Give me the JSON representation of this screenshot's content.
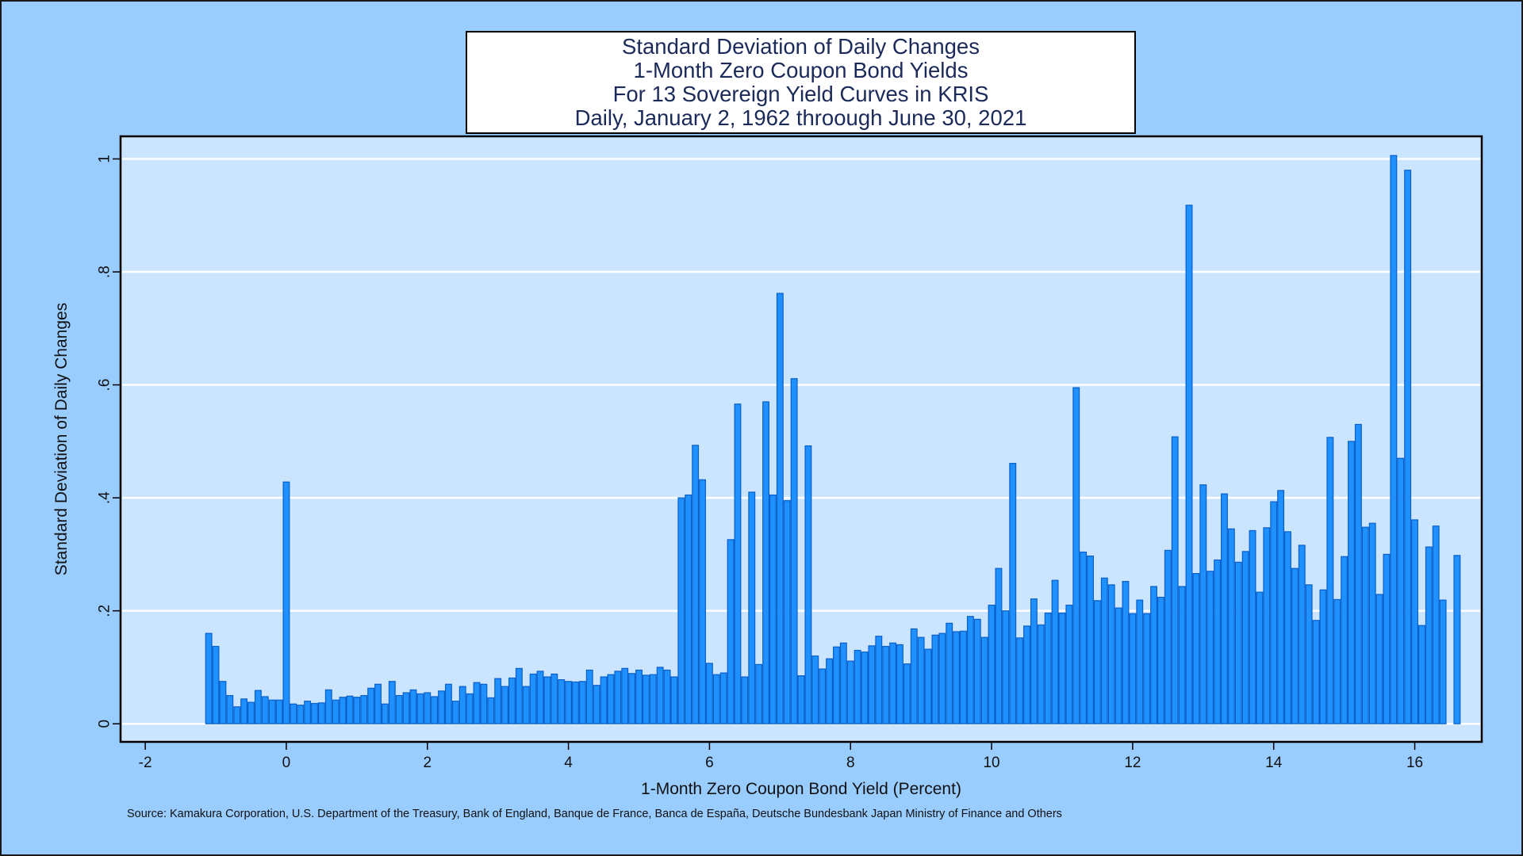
{
  "chart_data": {
    "type": "bar",
    "title_lines": [
      "Standard Deviation of Daily Changes",
      "1-Month Zero Coupon Bond Yields",
      "For 13 Sovereign Yield Curves in KRIS",
      "Daily, January 2, 1962 throough June 30, 2021"
    ],
    "xlabel": "1-Month Zero Coupon Bond Yield (Percent)",
    "ylabel": "Standard Deviation of Daily Changes",
    "xlim": [
      -2.35,
      16.95
    ],
    "ylim": [
      -0.032,
      1.04
    ],
    "x_ticks": [
      -2,
      0,
      2,
      4,
      6,
      8,
      10,
      12,
      14,
      16
    ],
    "x_tick_labels": [
      "-2",
      "0",
      "2",
      "4",
      "6",
      "8",
      "10",
      "12",
      "14",
      "16"
    ],
    "y_ticks": [
      0,
      0.2,
      0.4,
      0.6,
      0.8,
      1
    ],
    "y_tick_labels": [
      "0",
      ".2",
      ".4",
      ".6",
      ".8",
      "1"
    ],
    "grid": true,
    "bar_width": 0.1,
    "colors": {
      "bar_fill": "#1E90FF",
      "bar_edge": "#0A5FC8",
      "plot_bg": "#CCE5FF",
      "gridline": "#FFFFFF"
    },
    "x": [
      -1.1,
      -1.0,
      -0.9,
      -0.8,
      -0.7,
      -0.6,
      -0.5,
      -0.4,
      -0.3,
      -0.2,
      -0.1,
      0.0,
      0.1,
      0.2,
      0.3,
      0.4,
      0.5,
      0.6,
      0.7,
      0.8,
      0.9,
      1.0,
      1.1,
      1.2,
      1.3,
      1.4,
      1.5,
      1.6,
      1.7,
      1.8,
      1.9,
      2.0,
      2.1,
      2.2,
      2.3,
      2.4,
      2.5,
      2.6,
      2.7,
      2.8,
      2.9,
      3.0,
      3.1,
      3.2,
      3.3,
      3.4,
      3.5,
      3.6,
      3.7,
      3.8,
      3.9,
      4.0,
      4.1,
      4.2,
      4.3,
      4.4,
      4.5,
      4.6,
      4.7,
      4.8,
      4.9,
      5.0,
      5.1,
      5.2,
      5.3,
      5.4,
      5.5,
      5.6,
      5.7,
      5.8,
      5.9,
      6.0,
      6.1,
      6.2,
      6.3,
      6.4,
      6.5,
      6.6,
      6.7,
      6.8,
      6.9,
      7.0,
      7.1,
      7.2,
      7.3,
      7.4,
      7.5,
      7.6,
      7.7,
      7.8,
      7.9,
      8.0,
      8.1,
      8.2,
      8.3,
      8.4,
      8.5,
      8.6,
      8.7,
      8.8,
      8.9,
      9.0,
      9.1,
      9.2,
      9.3,
      9.4,
      9.5,
      9.6,
      9.7,
      9.8,
      9.9,
      10.0,
      10.1,
      10.2,
      10.3,
      10.4,
      10.5,
      10.6,
      10.7,
      10.8,
      10.9,
      11.0,
      11.1,
      11.2,
      11.3,
      11.4,
      11.5,
      11.6,
      11.7,
      11.8,
      11.9,
      12.0,
      12.1,
      12.2,
      12.3,
      12.4,
      12.5,
      12.6,
      12.7,
      12.8,
      12.9,
      13.0,
      13.1,
      13.2,
      13.3,
      13.4,
      13.5,
      13.6,
      13.7,
      13.8,
      13.9,
      14.0,
      14.1,
      14.2,
      14.3,
      14.4,
      14.5,
      14.6,
      14.7,
      14.8,
      14.9,
      15.0,
      15.1,
      15.2,
      15.3,
      15.4,
      15.5,
      15.6,
      15.7,
      15.8,
      15.9,
      16.0,
      16.1,
      16.2,
      16.3,
      16.4,
      16.6
    ],
    "values": [
      0.16,
      0.137,
      0.075,
      0.05,
      0.03,
      0.044,
      0.038,
      0.059,
      0.048,
      0.042,
      0.042,
      0.428,
      0.035,
      0.033,
      0.04,
      0.036,
      0.037,
      0.06,
      0.042,
      0.047,
      0.049,
      0.047,
      0.05,
      0.063,
      0.07,
      0.035,
      0.075,
      0.05,
      0.055,
      0.06,
      0.053,
      0.055,
      0.048,
      0.058,
      0.07,
      0.04,
      0.066,
      0.053,
      0.073,
      0.07,
      0.046,
      0.08,
      0.066,
      0.081,
      0.098,
      0.066,
      0.088,
      0.093,
      0.083,
      0.088,
      0.078,
      0.075,
      0.074,
      0.075,
      0.095,
      0.068,
      0.083,
      0.087,
      0.093,
      0.098,
      0.089,
      0.095,
      0.086,
      0.087,
      0.1,
      0.095,
      0.083,
      0.4,
      0.405,
      0.493,
      0.432,
      0.107,
      0.087,
      0.09,
      0.326,
      0.566,
      0.083,
      0.41,
      0.105,
      0.57,
      0.405,
      0.762,
      0.395,
      0.611,
      0.085,
      0.492,
      0.12,
      0.097,
      0.115,
      0.136,
      0.143,
      0.111,
      0.13,
      0.127,
      0.138,
      0.155,
      0.137,
      0.143,
      0.14,
      0.106,
      0.168,
      0.153,
      0.132,
      0.157,
      0.16,
      0.178,
      0.163,
      0.164,
      0.19,
      0.185,
      0.153,
      0.21,
      0.275,
      0.2,
      0.461,
      0.152,
      0.173,
      0.221,
      0.175,
      0.196,
      0.254,
      0.196,
      0.21,
      0.595,
      0.304,
      0.297,
      0.218,
      0.258,
      0.246,
      0.205,
      0.252,
      0.195,
      0.219,
      0.195,
      0.243,
      0.224,
      0.307,
      0.508,
      0.243,
      0.918,
      0.266,
      0.423,
      0.27,
      0.29,
      0.407,
      0.345,
      0.286,
      0.305,
      0.342,
      0.233,
      0.347,
      0.393,
      0.413,
      0.34,
      0.275,
      0.316,
      0.246,
      0.183,
      0.237,
      0.507,
      0.22,
      0.296,
      0.5,
      0.53,
      0.348,
      0.355,
      0.229,
      0.3,
      1.006,
      0.47,
      0.98,
      0.361,
      0.174,
      0.313,
      0.35,
      0.219,
      0.298
    ]
  },
  "source": "Source: Kamakura Corporation, U.S. Department of the Treasury, Bank of England, Banque de France, Banca de España, Deutsche Bundesbank Japan Ministry of Finance and Others"
}
